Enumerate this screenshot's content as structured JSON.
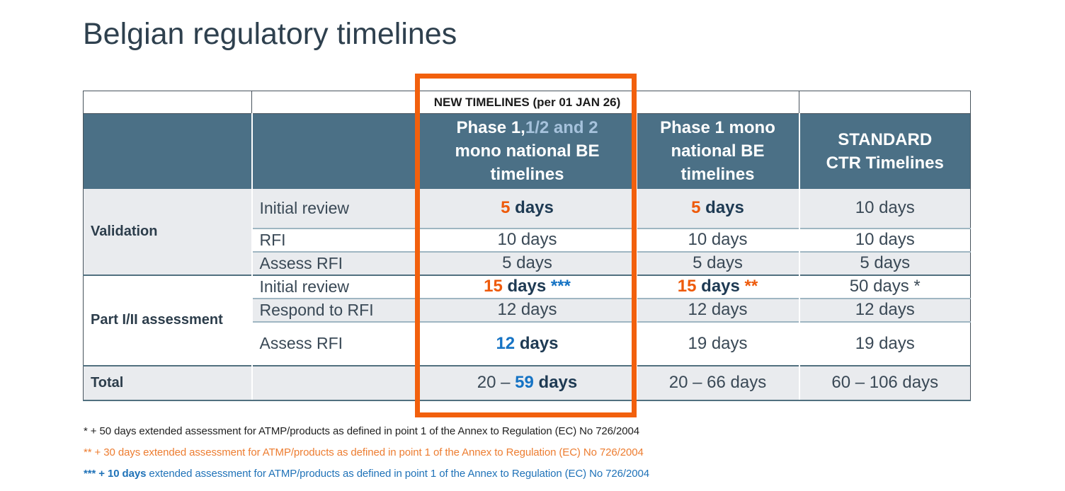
{
  "title": "Belgian regulatory timelines",
  "colors": {
    "header_bg": "#4B7086",
    "header_text": "#FFFFFF",
    "header_lightblue": "#A6C2DC",
    "row_gray": "#E9EBEE",
    "accent_orange": "#EE5A0B",
    "accent_blue": "#1573C4",
    "accent_navy": "#1E3A53",
    "highlight_box_orange": "#F2600D",
    "footnote_orange": "#ED7D31",
    "footnote_blue": "#1F72B8",
    "body_text": "#3A4956",
    "title_text": "#2E404E"
  },
  "table": {
    "banner": "NEW TIMELINES (per 01 JAN 26)",
    "headers": [
      {
        "name": "phase-1-12-and-2-mono-national-be",
        "parts": [
          {
            "t": "Phase 1,",
            "c": "white",
            "b": true
          },
          {
            "t": "1/2 and 2",
            "c": "lightblue",
            "b": true
          },
          {
            "t": " mono national BE timelines",
            "c": "white",
            "b": true
          }
        ]
      },
      {
        "name": "phase-1-mono-national-be",
        "parts": [
          {
            "t": "Phase 1 mono national BE timelines",
            "c": "white",
            "b": true
          }
        ]
      },
      {
        "name": "standard-ctr",
        "parts": [
          {
            "t": "STANDARD CTR Timelines",
            "c": "white",
            "b": true
          }
        ]
      }
    ],
    "groups": [
      {
        "label": "Validation",
        "rows": [
          {
            "sub": "Initial review",
            "cells": [
              [
                {
                  "t": "5",
                  "c": "orange",
                  "b": true
                },
                {
                  "t": " days",
                  "c": "navy",
                  "b": true
                }
              ],
              [
                {
                  "t": "5",
                  "c": "orange",
                  "b": true
                },
                {
                  "t": " days",
                  "c": "navy",
                  "b": true
                }
              ],
              [
                {
                  "t": "10 days"
                }
              ]
            ]
          },
          {
            "sub": "RFI",
            "cells": [
              [
                {
                  "t": "10 days"
                }
              ],
              [
                {
                  "t": "10 days"
                }
              ],
              [
                {
                  "t": "10 days"
                }
              ]
            ]
          },
          {
            "sub": "Assess RFI",
            "cells": [
              [
                {
                  "t": "5 days"
                }
              ],
              [
                {
                  "t": "5 days"
                }
              ],
              [
                {
                  "t": "5 days"
                }
              ]
            ]
          }
        ]
      },
      {
        "label": "Part I/II assessment",
        "rows": [
          {
            "sub": "Initial review",
            "cells": [
              [
                {
                  "t": "15",
                  "c": "orange",
                  "b": true
                },
                {
                  "t": " days ",
                  "c": "navy",
                  "b": true
                },
                {
                  "t": "***",
                  "c": "blue",
                  "b": true
                }
              ],
              [
                {
                  "t": "15",
                  "c": "orange",
                  "b": true
                },
                {
                  "t": " days ",
                  "c": "navy",
                  "b": true
                },
                {
                  "t": "**",
                  "c": "orange",
                  "b": true
                }
              ],
              [
                {
                  "t": "50 days *"
                }
              ]
            ]
          },
          {
            "sub": "Respond to RFI",
            "cells": [
              [
                {
                  "t": "12 days"
                }
              ],
              [
                {
                  "t": "12 days"
                }
              ],
              [
                {
                  "t": "12 days"
                }
              ]
            ]
          },
          {
            "sub": "Assess RFI",
            "cells": [
              [
                {
                  "t": "12",
                  "c": "blue",
                  "b": true
                },
                {
                  "t": " days",
                  "c": "navy",
                  "b": true
                }
              ],
              [
                {
                  "t": "19 days"
                }
              ],
              [
                {
                  "t": "19 days"
                }
              ]
            ]
          }
        ]
      }
    ],
    "total": {
      "label": "Total",
      "cells": [
        [
          {
            "t": "20 – "
          },
          {
            "t": "59",
            "c": "blue",
            "b": true
          },
          {
            "t": " days",
            "c": "navy",
            "b": true
          }
        ],
        [
          {
            "t": "20 – 66 days"
          }
        ],
        [
          {
            "t": "60 – 106 days"
          }
        ]
      ]
    }
  },
  "footnotes": [
    {
      "color": "black",
      "parts": [
        {
          "t": "* + 50 days extended assessment for ATMP/products as defined in point 1 of the Annex to Regulation (EC) No 726/2004"
        }
      ]
    },
    {
      "color": "orange",
      "parts": [
        {
          "t": "** + 30 days extended assessment for ATMP/products as defined in point 1 of the Annex to Regulation (EC) No 726/2004"
        }
      ]
    },
    {
      "color": "blue",
      "parts": [
        {
          "t": "*** + 10 days",
          "b": true
        },
        {
          "t": " extended assessment for ATMP/products as defined in point 1 of the Annex to Regulation (EC) No 726/2004"
        }
      ]
    }
  ]
}
